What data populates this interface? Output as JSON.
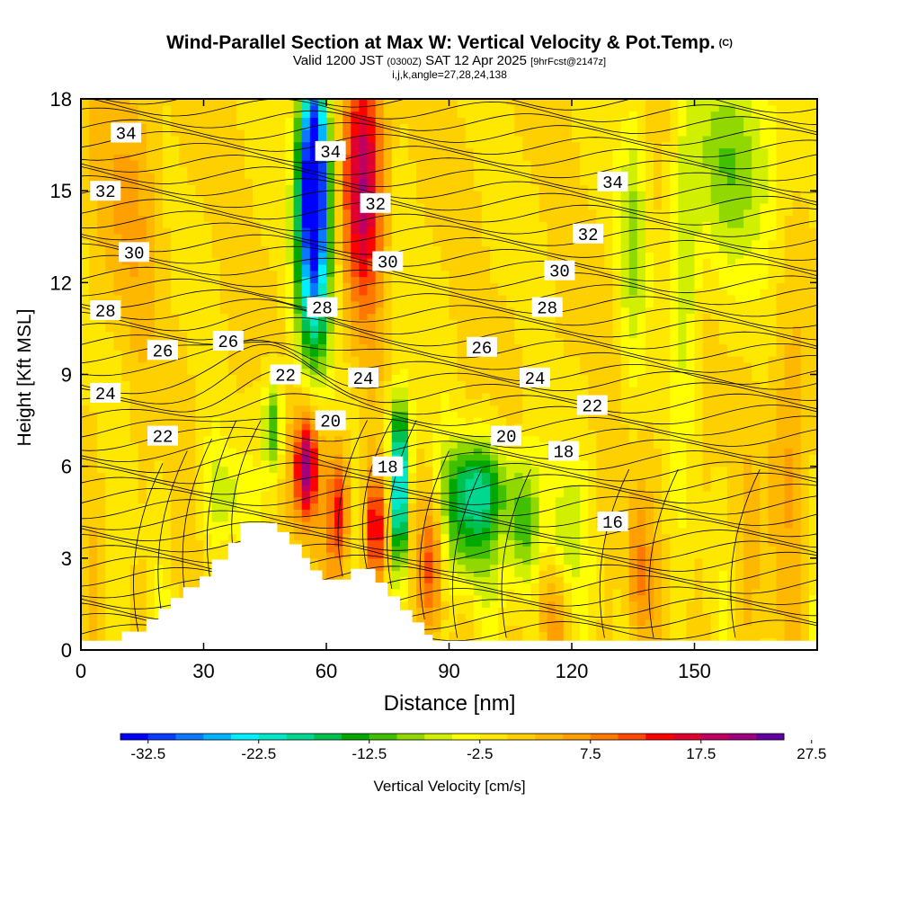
{
  "chart_data": {
    "type": "heatmap",
    "title": "Wind-Parallel Section at Max W: Vertical Velocity & Pot.Temp.",
    "title_mark": "(C)",
    "subtitle_prefix": "Valid 1200 JST",
    "subtitle_small1": "(0300Z)",
    "subtitle_mid": "SAT 12 Apr 2025",
    "subtitle_small2": "[9hrFcst@2147z]",
    "info": "i,j,k,angle=27,28,24,138",
    "xlabel": "Distance [nm]",
    "ylabel": "Height [Kft MSL]",
    "xlim": [
      0,
      180
    ],
    "ylim": [
      0,
      18
    ],
    "xticks": [
      0,
      30,
      60,
      90,
      120,
      150
    ],
    "yticks": [
      0,
      3,
      6,
      9,
      12,
      15,
      18
    ],
    "colorbar": {
      "label": "Vertical Velocity [cm/s]",
      "tick_labels": [
        "-32.5",
        "-22.5",
        "-12.5",
        "-2.5",
        "7.5",
        "17.5",
        "27.5"
      ],
      "colors": [
        "#0000ff",
        "#0a3cff",
        "#0a78ff",
        "#00b4ff",
        "#00f0ff",
        "#00e8c8",
        "#00d890",
        "#00c050",
        "#00a800",
        "#40c000",
        "#90d800",
        "#d0f000",
        "#ffff00",
        "#ffe800",
        "#ffd000",
        "#ffb800",
        "#ffa000",
        "#ff7800",
        "#ff4800",
        "#ff0000",
        "#e00030",
        "#c00060",
        "#a00080",
        "#6000a0"
      ]
    },
    "contour_labels": [
      {
        "v": "34",
        "x": 11,
        "y": 16.9
      },
      {
        "v": "34",
        "x": 61,
        "y": 16.3
      },
      {
        "v": "34",
        "x": 130,
        "y": 15.3
      },
      {
        "v": "32",
        "x": 6,
        "y": 15.0
      },
      {
        "v": "32",
        "x": 72,
        "y": 14.6
      },
      {
        "v": "32",
        "x": 124,
        "y": 13.6
      },
      {
        "v": "30",
        "x": 13,
        "y": 13.0
      },
      {
        "v": "30",
        "x": 75,
        "y": 12.7
      },
      {
        "v": "30",
        "x": 117,
        "y": 12.4
      },
      {
        "v": "28",
        "x": 6,
        "y": 11.1
      },
      {
        "v": "28",
        "x": 59,
        "y": 11.2
      },
      {
        "v": "28",
        "x": 114,
        "y": 11.2
      },
      {
        "v": "26",
        "x": 20,
        "y": 9.8
      },
      {
        "v": "26",
        "x": 36,
        "y": 10.1
      },
      {
        "v": "26",
        "x": 98,
        "y": 9.9
      },
      {
        "v": "24",
        "x": 6,
        "y": 8.4
      },
      {
        "v": "24",
        "x": 69,
        "y": 8.9
      },
      {
        "v": "24",
        "x": 111,
        "y": 8.9
      },
      {
        "v": "22",
        "x": 50,
        "y": 9.0
      },
      {
        "v": "22",
        "x": 20,
        "y": 7.0
      },
      {
        "v": "22",
        "x": 125,
        "y": 8.0
      },
      {
        "v": "20",
        "x": 61,
        "y": 7.5
      },
      {
        "v": "20",
        "x": 104,
        "y": 7.0
      },
      {
        "v": "18",
        "x": 75,
        "y": 6.0
      },
      {
        "v": "18",
        "x": 118,
        "y": 6.5
      },
      {
        "v": "16",
        "x": 130,
        "y": 4.2
      }
    ],
    "terrain": [
      [
        0,
        0.3
      ],
      [
        10,
        0.3
      ],
      [
        10,
        0.6
      ],
      [
        16,
        0.6
      ],
      [
        16,
        1.0
      ],
      [
        19,
        1.0
      ],
      [
        19,
        1.35
      ],
      [
        22,
        1.35
      ],
      [
        22,
        1.7
      ],
      [
        25,
        1.7
      ],
      [
        25,
        2.05
      ],
      [
        29,
        2.05
      ],
      [
        29,
        2.4
      ],
      [
        32,
        2.4
      ],
      [
        32,
        2.95
      ],
      [
        36,
        2.95
      ],
      [
        36,
        3.5
      ],
      [
        39,
        3.5
      ],
      [
        39,
        4.15
      ],
      [
        48,
        4.15
      ],
      [
        48,
        3.85
      ],
      [
        51,
        3.85
      ],
      [
        51,
        3.45
      ],
      [
        54,
        3.45
      ],
      [
        54,
        3.0
      ],
      [
        56,
        3.0
      ],
      [
        56,
        2.6
      ],
      [
        59,
        2.6
      ],
      [
        59,
        2.3
      ],
      [
        66,
        2.3
      ],
      [
        66,
        2.65
      ],
      [
        72,
        2.65
      ],
      [
        72,
        2.2
      ],
      [
        75,
        2.2
      ],
      [
        75,
        1.75
      ],
      [
        78,
        1.75
      ],
      [
        78,
        1.3
      ],
      [
        81,
        1.3
      ],
      [
        81,
        0.9
      ],
      [
        84,
        0.9
      ],
      [
        84,
        0.5
      ],
      [
        86,
        0.5
      ],
      [
        86,
        0.3
      ],
      [
        180,
        0.3
      ]
    ]
  }
}
